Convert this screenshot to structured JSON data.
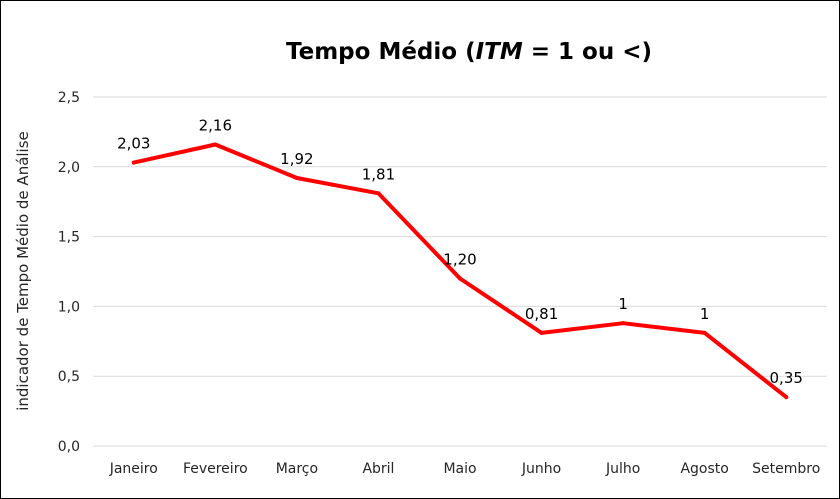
{
  "chart_data": {
    "type": "line",
    "title": {
      "prefix": "Tempo Médio (",
      "emphasis": "ITM",
      "suffix": " = 1 ou <)"
    },
    "ylabel": "indicador de Tempo Médio de Análise",
    "xlabel": "",
    "categories": [
      "Janeiro",
      "Fevereiro",
      "Março",
      "Abril",
      "Maio",
      "Junho",
      "Julho",
      "Agosto",
      "Setembro"
    ],
    "series": [
      {
        "values": [
          2.03,
          2.16,
          1.92,
          1.81,
          1.2,
          0.81,
          0.88,
          0.81,
          0.35
        ],
        "data_labels": [
          "2,03",
          "2,16",
          "1,92",
          "1,81",
          "1,20",
          "0,81",
          "1",
          "1",
          "0,35"
        ],
        "color": "#ff0000"
      }
    ],
    "ylim": [
      0,
      2.5
    ],
    "yticks": [
      "0,0",
      "0,5",
      "1,0",
      "1,5",
      "2,0",
      "2,5"
    ],
    "ytick_values": [
      0,
      0.5,
      1.0,
      1.5,
      2.0,
      2.5
    ],
    "grid": true,
    "legend": "none"
  }
}
